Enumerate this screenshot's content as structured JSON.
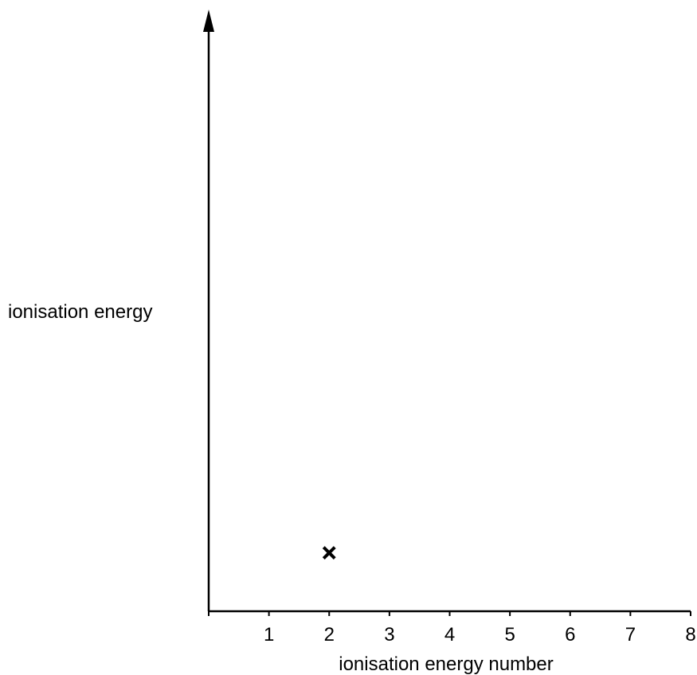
{
  "chart_data": {
    "type": "scatter",
    "title": "",
    "xlabel": "ionisation energy number",
    "ylabel": "ionisation energy",
    "x_ticks": [
      "1",
      "2",
      "3",
      "4",
      "5",
      "6",
      "7",
      "8"
    ],
    "xlim": [
      0,
      8
    ],
    "ylim": [
      0,
      1
    ],
    "y_ticks": [],
    "grid": false,
    "marker": "x",
    "series": [
      {
        "points": [
          {
            "x": 2,
            "y": 0.1
          }
        ]
      }
    ]
  }
}
